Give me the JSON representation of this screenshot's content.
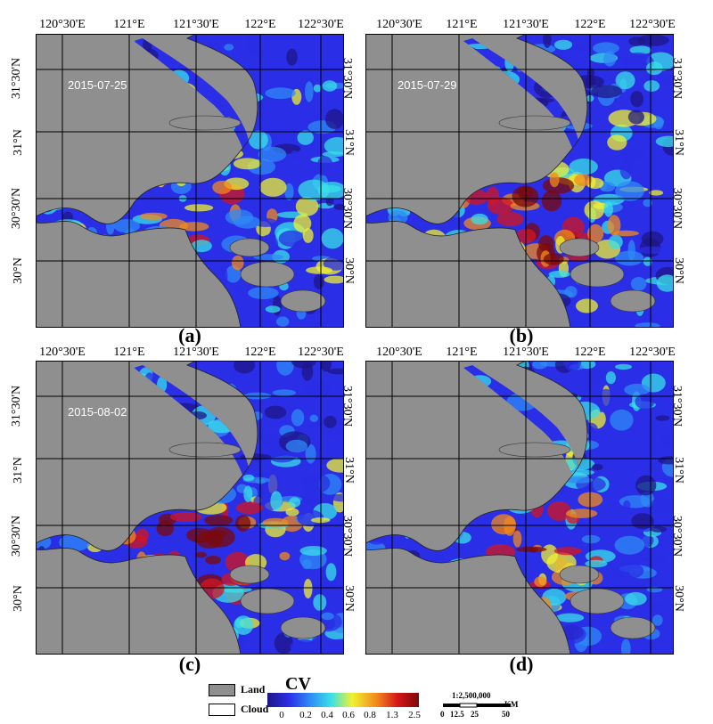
{
  "lon_labels": [
    "120°30'E",
    "121°E",
    "121°30'E",
    "122°E",
    "122°30'E"
  ],
  "lat_labels": [
    "31°30'N",
    "31°N",
    "30°30'N",
    "30°N"
  ],
  "panels": [
    {
      "id": "a",
      "label": "(a)",
      "date": "2015-07-25"
    },
    {
      "id": "b",
      "label": "(b)",
      "date": "2015-07-29"
    },
    {
      "id": "c",
      "label": "(c)",
      "date": "2015-08-02"
    },
    {
      "id": "d",
      "label": "(d)",
      "date": ""
    }
  ],
  "legend": {
    "land_label": "Land",
    "cloud_label": "Cloud",
    "land_color": "#8f8f8f",
    "cloud_color": "#ffffff"
  },
  "colorbar": {
    "title": "CV",
    "ticks": [
      "0",
      "0.2",
      "0.4",
      "0.6",
      "0.8",
      "1.3",
      "2.5"
    ],
    "colors": [
      "#1d1587",
      "#2a2ee6",
      "#2f8af5",
      "#38e0e8",
      "#f0f230",
      "#f28a1c",
      "#d4161c",
      "#7a0a0a"
    ]
  },
  "scale": {
    "ratio": "1:2,500,000",
    "unit": "KM",
    "ticks": [
      "0",
      "12.5",
      "25",
      "50"
    ]
  },
  "colors": {
    "land": "#8f8f8f",
    "water_low": "#2a2ee6",
    "water_mid": "#38e0e8",
    "water_high": "#f0f230",
    "water_peak": "#d4161c"
  }
}
